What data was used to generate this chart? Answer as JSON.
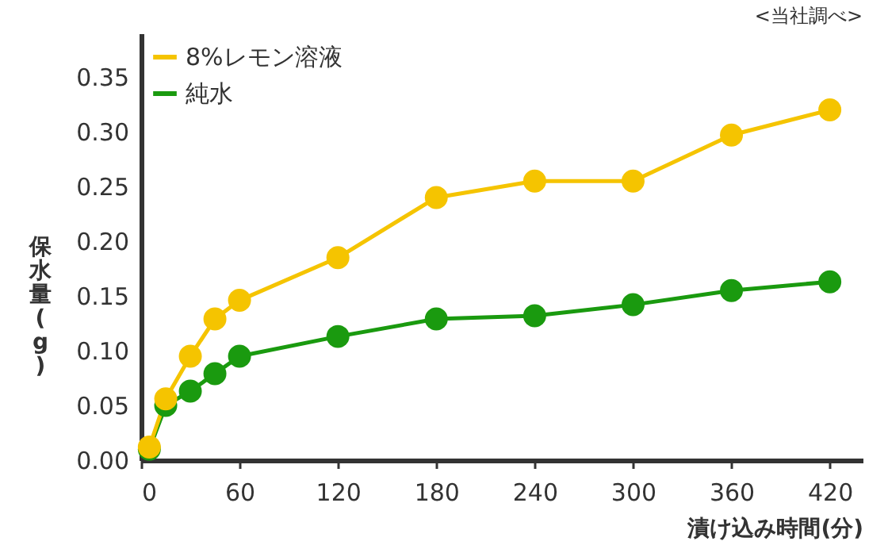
{
  "chart_data": {
    "type": "line",
    "xlabel": "漬け込み時間(分)",
    "ylabel": "保水量(g)",
    "annotations": [
      "<当社調べ>"
    ],
    "x": [
      5,
      15,
      30,
      45,
      60,
      120,
      180,
      240,
      300,
      360,
      420
    ],
    "series": [
      {
        "name": "8%レモン溶液",
        "color": "#f5c400",
        "values": [
          0.012,
          0.056,
          0.095,
          0.129,
          0.146,
          0.185,
          0.24,
          0.255,
          0.255,
          0.297,
          0.32
        ]
      },
      {
        "name": "純水",
        "color": "#1a9a0f",
        "values": [
          0.01,
          0.05,
          0.063,
          0.079,
          0.095,
          0.113,
          0.129,
          0.132,
          0.142,
          0.155,
          0.163
        ]
      }
    ],
    "xlim": [
      0,
      440
    ],
    "xticks": [
      0,
      60,
      120,
      180,
      240,
      300,
      360,
      420
    ],
    "ylim": [
      0,
      0.39
    ],
    "yticks": [
      {
        "value": 0,
        "label": "0.00"
      },
      {
        "value": 0.05,
        "label": "0.05"
      },
      {
        "value": 0.1,
        "label": "0.10"
      },
      {
        "value": 0.15,
        "label": "0.15"
      },
      {
        "value": 0.2,
        "label": "0.20"
      },
      {
        "value": 0.25,
        "label": "0.25"
      },
      {
        "value": 0.3,
        "label": "0.30"
      },
      {
        "value": 0.35,
        "label": "0.35"
      }
    ],
    "grid": false,
    "legend": "top left",
    "marker": "circle",
    "line_style": "solid"
  }
}
